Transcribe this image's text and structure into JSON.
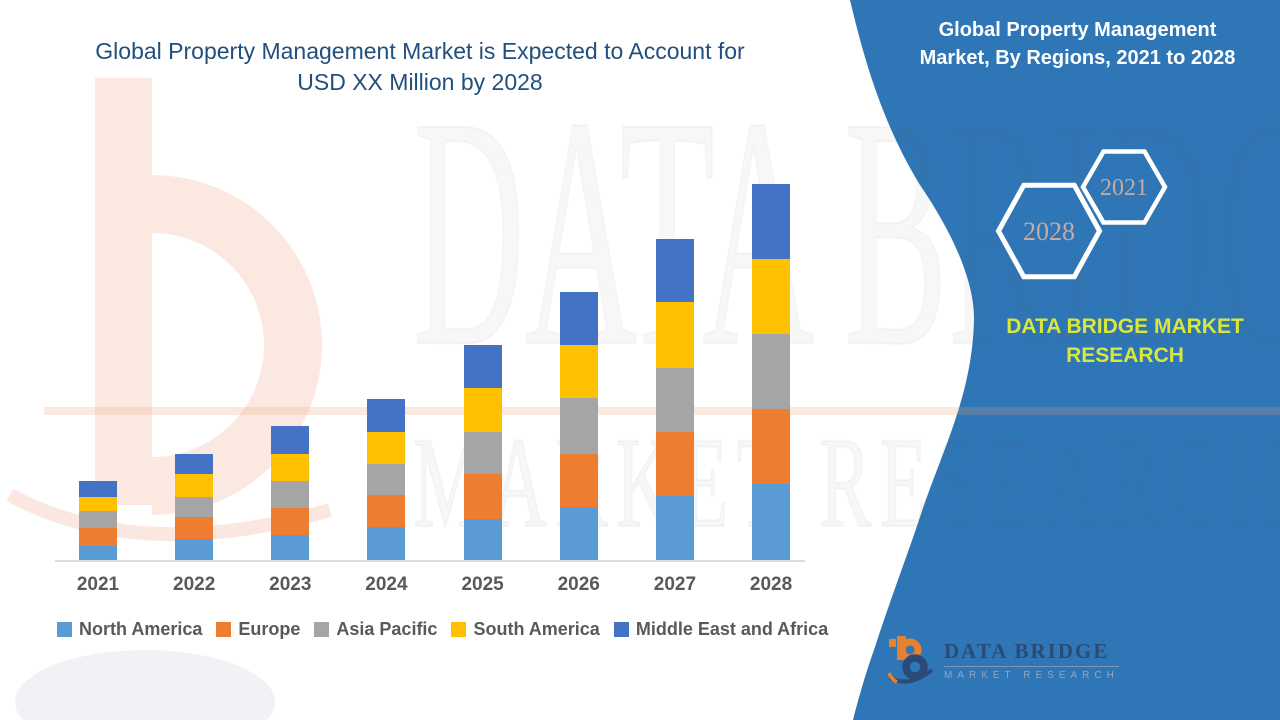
{
  "title": {
    "line1": "Global Property Management Market is Expected to Account for",
    "line2": "USD XX Million by 2028",
    "color": "#234F7D"
  },
  "panel": {
    "color": "#2E76B6",
    "heading_line1": "Global Property Management",
    "heading_line2": "Market, By Regions, 2021 to 2028",
    "hexagons": [
      {
        "label": "2028"
      },
      {
        "label": "2021"
      }
    ],
    "hexagon_label_color": "#C7ABA1",
    "brand_line1": "DATA BRIDGE MARKET",
    "brand_line2": "RESEARCH",
    "brand_color": "#D9E73B"
  },
  "watermark": {
    "line1": "DATA BRIDGE",
    "line2": "MARKET RESEARCH"
  },
  "footer_logo": {
    "name": "DATA BRIDGE",
    "tagline": "MARKET RESEARCH",
    "mark_colors": {
      "orange": "#E8812D",
      "navy": "#2C4A78"
    }
  },
  "chart_data": {
    "type": "bar",
    "stacked": true,
    "title": "Global Property Management Market, By Regions, 2021 to 2028",
    "xlabel": "",
    "ylabel": "",
    "values_unit": "USD Million (figures masked as XX in source; values below are relative estimates read from bar heights)",
    "y_axis_visible": false,
    "grid": false,
    "legend_position": "bottom",
    "ylim": [
      0,
      380
    ],
    "categories": [
      "2021",
      "2022",
      "2023",
      "2024",
      "2025",
      "2026",
      "2027",
      "2028"
    ],
    "series": [
      {
        "name": "North America",
        "color": "#5B9BD5",
        "values": [
          14,
          21,
          25,
          33,
          41,
          53,
          64,
          76
        ]
      },
      {
        "name": "Europe",
        "color": "#ED7D31",
        "values": [
          18,
          22,
          27,
          32,
          45,
          53,
          64,
          75
        ]
      },
      {
        "name": "Asia Pacific",
        "color": "#A5A5A5",
        "values": [
          17,
          20,
          27,
          31,
          42,
          56,
          64,
          75
        ]
      },
      {
        "name": "South America",
        "color": "#FFC000",
        "values": [
          14,
          23,
          27,
          32,
          44,
          53,
          66,
          75
        ]
      },
      {
        "name": "Middle East and Africa",
        "color": "#4472C4",
        "values": [
          16,
          20,
          28,
          33,
          43,
          53,
          63,
          75
        ]
      }
    ],
    "totals_estimate": [
      79,
      106,
      134,
      161,
      215,
      268,
      321,
      376
    ]
  }
}
